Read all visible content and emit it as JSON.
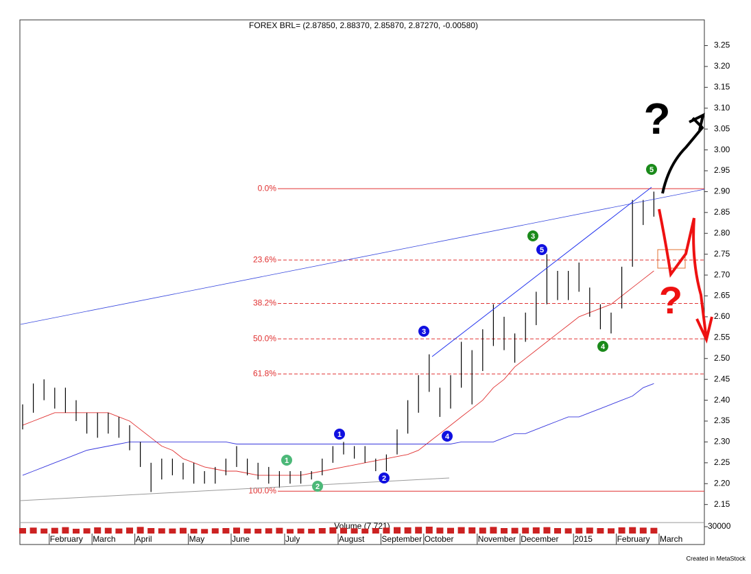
{
  "chart_data": {
    "type": "ohlc",
    "title": "FOREX BRL= (2.87850, 2.88370, 2.85870, 2.87270, -0.00580)",
    "footer": "Created in MetaStock",
    "categories": [
      null,
      null,
      null,
      "February",
      null,
      null,
      null,
      "March",
      null,
      null,
      null,
      "April",
      null,
      null,
      null,
      null,
      "May",
      null,
      null,
      null,
      "June",
      null,
      null,
      null,
      null,
      "July",
      null,
      null,
      null,
      null,
      "August",
      null,
      null,
      null,
      "September",
      null,
      null,
      null,
      "October",
      null,
      null,
      null,
      null,
      "November",
      null,
      null,
      null,
      "December",
      null,
      null,
      null,
      null,
      "2015",
      null,
      null,
      null,
      "February",
      null,
      null,
      null,
      "March",
      null,
      null,
      null
    ],
    "low": [
      2.33,
      2.37,
      2.4,
      2.38,
      2.37,
      2.35,
      2.32,
      2.31,
      2.32,
      2.31,
      2.28,
      2.24,
      2.18,
      2.21,
      2.22,
      2.21,
      2.2,
      2.2,
      2.2,
      2.22,
      2.24,
      2.22,
      2.21,
      2.2,
      2.19,
      2.2,
      2.2,
      2.21,
      2.22,
      2.25,
      2.27,
      2.26,
      2.25,
      2.23,
      2.23,
      2.27,
      2.32,
      2.37,
      2.42,
      2.36,
      2.38,
      2.43,
      2.39,
      2.47,
      2.53,
      2.52,
      2.49,
      2.54,
      2.58,
      2.63,
      2.64,
      2.64,
      2.66,
      2.6,
      2.57,
      2.56,
      2.62,
      2.72,
      2.82,
      2.84,
      null,
      null,
      null,
      null
    ],
    "high": [
      2.39,
      2.44,
      2.45,
      2.43,
      2.43,
      2.4,
      2.37,
      2.37,
      2.37,
      2.36,
      2.34,
      2.3,
      2.25,
      2.26,
      2.26,
      2.25,
      2.25,
      2.23,
      2.24,
      2.26,
      2.29,
      2.26,
      2.25,
      2.24,
      2.23,
      2.23,
      2.23,
      2.23,
      2.26,
      2.29,
      2.3,
      2.29,
      2.29,
      2.26,
      2.27,
      2.33,
      2.4,
      2.46,
      2.51,
      2.43,
      2.46,
      2.54,
      2.52,
      2.57,
      2.63,
      2.6,
      2.56,
      2.61,
      2.66,
      2.75,
      2.71,
      2.71,
      2.73,
      2.67,
      2.63,
      2.61,
      2.72,
      2.88,
      2.88,
      2.9,
      null,
      null,
      null,
      null
    ],
    "moving_averages": [
      {
        "color": "#e03030",
        "values": [
          2.34,
          2.35,
          2.36,
          2.37,
          2.37,
          2.37,
          2.37,
          2.37,
          2.37,
          2.36,
          2.35,
          2.33,
          2.31,
          2.29,
          2.28,
          2.26,
          2.25,
          2.24,
          2.235,
          2.23,
          2.23,
          2.225,
          2.22,
          2.22,
          2.22,
          2.22,
          2.22,
          2.225,
          2.23,
          2.235,
          2.24,
          2.245,
          2.25,
          2.255,
          2.26,
          2.265,
          2.27,
          2.28,
          2.3,
          2.32,
          2.34,
          2.36,
          2.38,
          2.4,
          2.43,
          2.45,
          2.48,
          2.5,
          2.52,
          2.54,
          2.56,
          2.58,
          2.6,
          2.61,
          2.62,
          2.63,
          2.65,
          2.67,
          2.69,
          2.71,
          null,
          null,
          null,
          null
        ]
      },
      {
        "color": "#3333dd",
        "values": [
          2.22,
          2.23,
          2.24,
          2.25,
          2.26,
          2.27,
          2.28,
          2.285,
          2.29,
          2.295,
          2.3,
          2.3,
          2.3,
          2.3,
          2.3,
          2.3,
          2.3,
          2.3,
          2.3,
          2.3,
          2.295,
          2.295,
          2.295,
          2.295,
          2.295,
          2.295,
          2.295,
          2.295,
          2.295,
          2.295,
          2.295,
          2.295,
          2.295,
          2.295,
          2.295,
          2.295,
          2.295,
          2.295,
          2.295,
          2.295,
          2.295,
          2.3,
          2.3,
          2.3,
          2.3,
          2.31,
          2.32,
          2.32,
          2.33,
          2.34,
          2.35,
          2.36,
          2.36,
          2.37,
          2.38,
          2.39,
          2.4,
          2.41,
          2.43,
          2.44,
          null,
          null,
          null,
          null
        ]
      }
    ],
    "ylim": [
      2.11,
      3.31
    ],
    "yticks": [
      2.15,
      {
        "value": 2.2,
        "label": "2.20"
      },
      2.25,
      {
        "value": 2.3,
        "label": "2.30"
      },
      2.35,
      {
        "value": 2.4,
        "label": "2.40"
      },
      2.45,
      {
        "value": 2.5,
        "label": "2.50"
      },
      2.55,
      {
        "value": 2.6,
        "label": "2.60"
      },
      2.65,
      {
        "value": 2.7,
        "label": "2.70"
      },
      2.75,
      {
        "value": 2.8,
        "label": "2.80"
      },
      2.85,
      {
        "value": 2.9,
        "label": "2.90"
      },
      2.95,
      {
        "value": 3,
        "label": "3.00"
      },
      3.05,
      {
        "value": 3.1,
        "label": "3.10"
      },
      3.15,
      {
        "value": 3.2,
        "label": "3.20"
      },
      3.25
    ],
    "fib_levels": [
      {
        "value": 2.907,
        "label": "0.0%",
        "style": "solid"
      },
      {
        "value": 2.736,
        "label": "23.6%",
        "style": "dashed"
      },
      {
        "value": 2.632,
        "label": "38.2%",
        "style": "dashed"
      },
      {
        "value": 2.547,
        "label": "50.0%",
        "style": "dashed"
      },
      {
        "value": 2.463,
        "label": "61.8%",
        "style": "dashed"
      },
      {
        "value": 2.182,
        "label": "100.0%",
        "style": "solid"
      }
    ],
    "fib_color": "#e03030",
    "volume": {
      "label": "Volume (7,721)",
      "color": "#cc2222",
      "ylim": [
        0,
        48000
      ],
      "yticks": [
        30000
      ],
      "values": [
        24000,
        26000,
        22000,
        25000,
        28000,
        21000,
        23000,
        27000,
        25000,
        22000,
        26000,
        29000,
        24000,
        23000,
        22000,
        25000,
        21000,
        20000,
        23000,
        24000,
        26000,
        22000,
        21000,
        23000,
        25000,
        20000,
        22000,
        21000,
        24000,
        27000,
        25000,
        23000,
        22000,
        24000,
        26000,
        28000,
        27000,
        29000,
        30000,
        26000,
        25000,
        28000,
        27000,
        26000,
        29000,
        24000,
        25000,
        26000,
        27000,
        28000,
        24000,
        23000,
        25000,
        26000,
        24000,
        23000,
        27000,
        28000,
        26000,
        25000,
        null,
        null,
        null,
        null
      ]
    },
    "wave_labels": [
      "1",
      "2",
      "1",
      "2",
      "3",
      "4",
      "5",
      "3",
      "4",
      "5"
    ],
    "hand_notes": [
      "?",
      "?"
    ]
  }
}
